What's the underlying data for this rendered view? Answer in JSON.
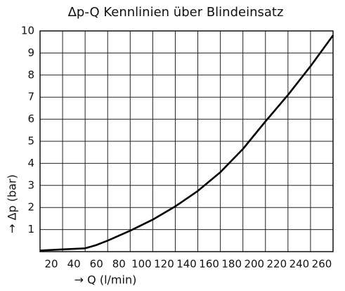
{
  "chart_data": {
    "type": "line",
    "title": "Δp-Q Kennlinien über Blindeinsatz",
    "x_label": "→ Q (l/min)",
    "y_label": "→ Δp (bar)",
    "x": [
      0,
      20,
      40,
      50,
      60,
      80,
      100,
      120,
      140,
      160,
      180,
      200,
      220,
      240,
      260
    ],
    "series": [
      {
        "name": "Blindeinsatz",
        "color": "#000000",
        "values": [
          0.05,
          0.1,
          0.15,
          0.3,
          0.5,
          0.95,
          1.45,
          2.05,
          2.75,
          3.6,
          4.65,
          5.9,
          7.1,
          8.4,
          9.8
        ]
      }
    ],
    "xlim": [
      0,
      260
    ],
    "ylim": [
      0,
      10
    ],
    "xticks": [
      20,
      40,
      60,
      80,
      100,
      120,
      140,
      160,
      180,
      200,
      220,
      240,
      260
    ],
    "yticks": [
      1,
      2,
      3,
      4,
      5,
      6,
      7,
      8,
      9,
      10
    ],
    "grid": true
  }
}
